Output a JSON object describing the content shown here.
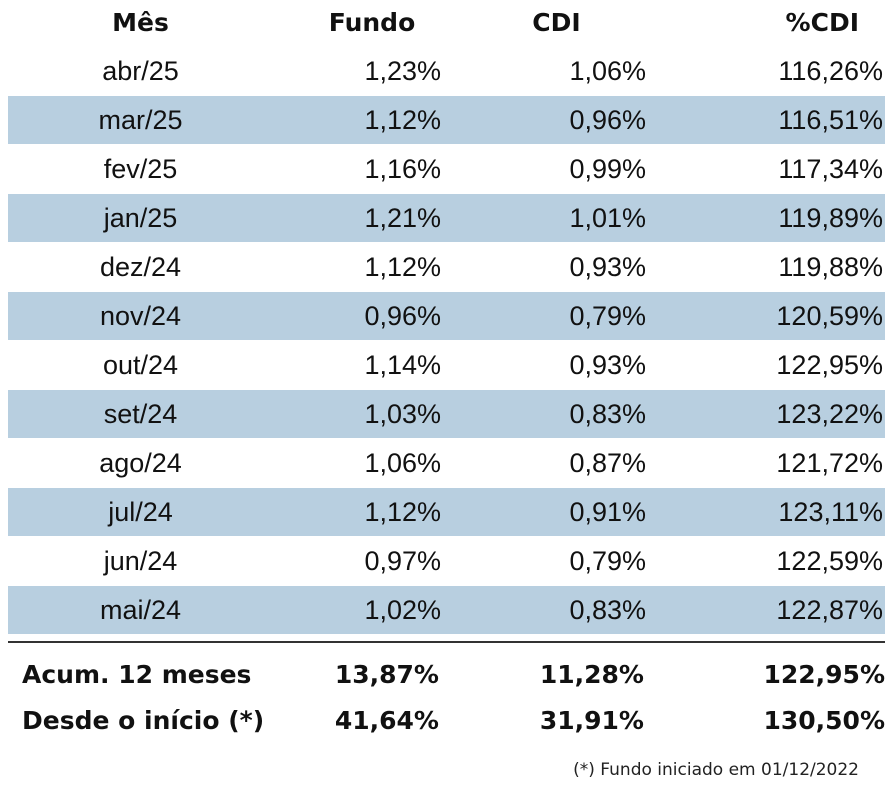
{
  "table": {
    "headers": [
      "Mês",
      "Fundo",
      "CDI",
      "%CDI"
    ],
    "rows": [
      [
        "abr/25",
        "1,23%",
        "1,06%",
        "116,26%"
      ],
      [
        "mar/25",
        "1,12%",
        "0,96%",
        "116,51%"
      ],
      [
        "fev/25",
        "1,16%",
        "0,99%",
        "117,34%"
      ],
      [
        "jan/25",
        "1,21%",
        "1,01%",
        "119,89%"
      ],
      [
        "dez/24",
        "1,12%",
        "0,93%",
        "119,88%"
      ],
      [
        "nov/24",
        "0,96%",
        "0,79%",
        "120,59%"
      ],
      [
        "out/24",
        "1,14%",
        "0,93%",
        "122,95%"
      ],
      [
        "set/24",
        "1,03%",
        "0,83%",
        "123,22%"
      ],
      [
        "ago/24",
        "1,06%",
        "0,87%",
        "121,72%"
      ],
      [
        "jul/24",
        "1,12%",
        "0,91%",
        "123,11%"
      ],
      [
        "jun/24",
        "0,97%",
        "0,79%",
        "122,59%"
      ],
      [
        "mai/24",
        "1,02%",
        "0,83%",
        "122,87%"
      ]
    ],
    "summary": [
      [
        "Acum. 12 meses",
        "13,87%",
        "11,28%",
        "122,95%"
      ],
      [
        "Desde o início (*)",
        "41,64%",
        "31,91%",
        "130,50%"
      ]
    ]
  },
  "footnote": "(*) Fundo iniciado em 01/12/2022",
  "colors": {
    "shaded_row": "#b8cfe0",
    "text": "#111111",
    "rule": "#333333"
  }
}
